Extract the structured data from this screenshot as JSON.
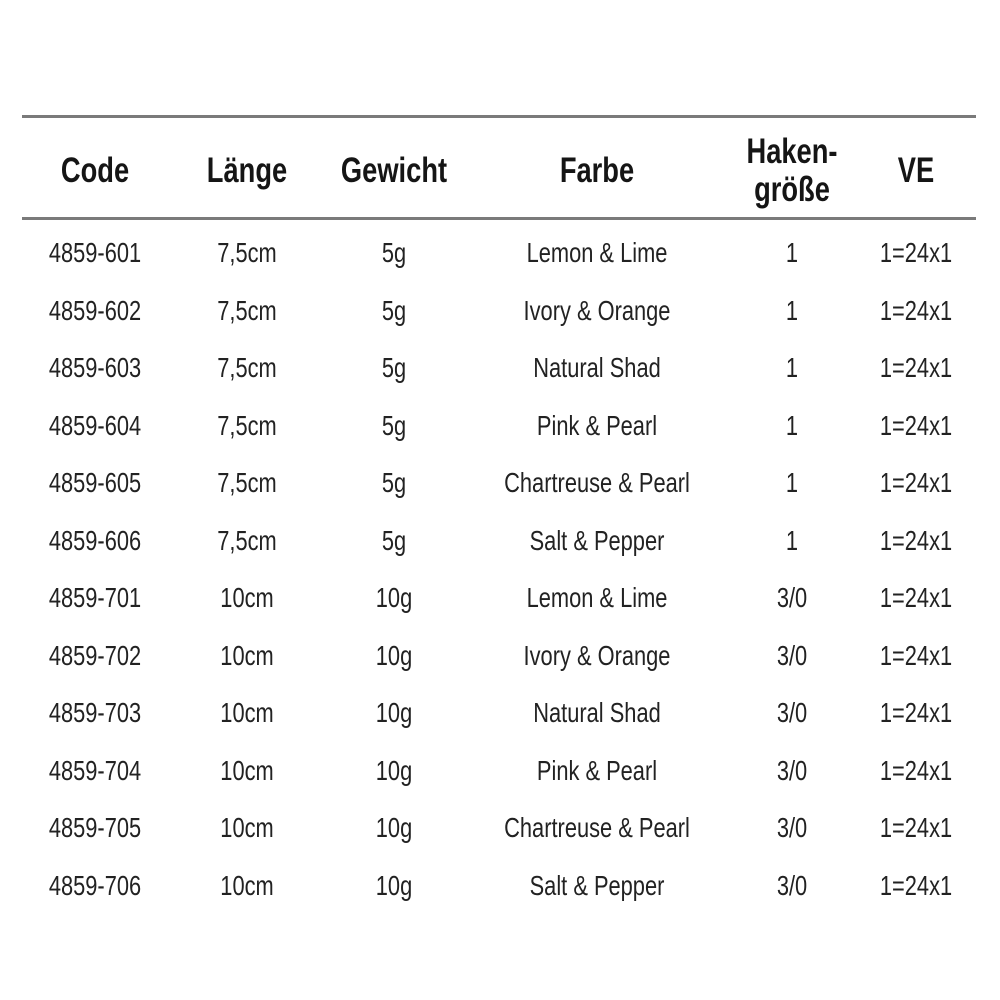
{
  "table": {
    "headers": [
      "Code",
      "Länge",
      "Gewicht",
      "Farbe",
      "Haken-\ngröße",
      "VE"
    ],
    "header_lines": {
      "haken_1": "Haken-",
      "haken_2": "größe"
    },
    "rows": [
      [
        "4859-601",
        "7,5cm",
        "5g",
        "Lemon & Lime",
        "1",
        "1=24x1"
      ],
      [
        "4859-602",
        "7,5cm",
        "5g",
        "Ivory & Orange",
        "1",
        "1=24x1"
      ],
      [
        "4859-603",
        "7,5cm",
        "5g",
        "Natural Shad",
        "1",
        "1=24x1"
      ],
      [
        "4859-604",
        "7,5cm",
        "5g",
        "Pink & Pearl",
        "1",
        "1=24x1"
      ],
      [
        "4859-605",
        "7,5cm",
        "5g",
        "Chartreuse & Pearl",
        "1",
        "1=24x1"
      ],
      [
        "4859-606",
        "7,5cm",
        "5g",
        "Salt & Pepper",
        "1",
        "1=24x1"
      ],
      [
        "4859-701",
        "10cm",
        "10g",
        "Lemon & Lime",
        "3/0",
        "1=24x1"
      ],
      [
        "4859-702",
        "10cm",
        "10g",
        "Ivory & Orange",
        "3/0",
        "1=24x1"
      ],
      [
        "4859-703",
        "10cm",
        "10g",
        "Natural Shad",
        "3/0",
        "1=24x1"
      ],
      [
        "4859-704",
        "10cm",
        "10g",
        "Pink & Pearl",
        "3/0",
        "1=24x1"
      ],
      [
        "4859-705",
        "10cm",
        "10g",
        "Chartreuse & Pearl",
        "3/0",
        "1=24x1"
      ],
      [
        "4859-706",
        "10cm",
        "10g",
        "Salt & Pepper",
        "3/0",
        "1=24x1"
      ]
    ]
  }
}
